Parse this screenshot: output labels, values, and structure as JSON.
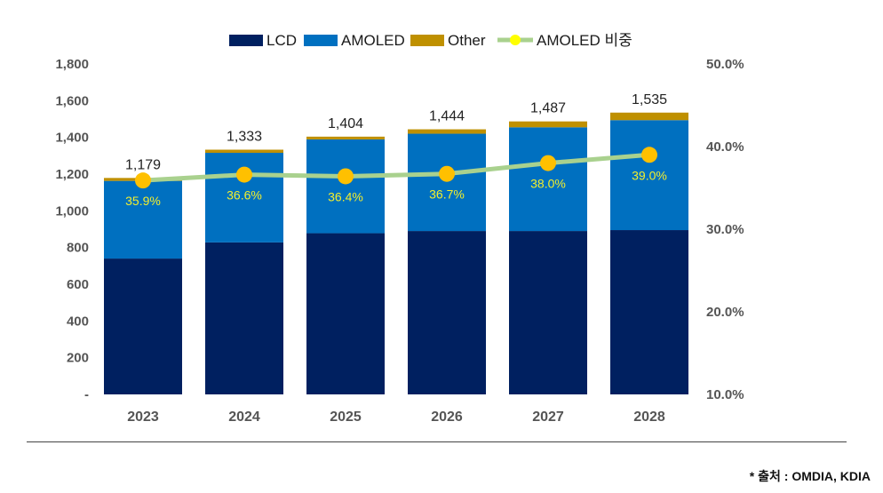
{
  "chart_data": {
    "type": "bar",
    "stacked": true,
    "categories": [
      "2023",
      "2024",
      "2025",
      "2026",
      "2027",
      "2028"
    ],
    "series": [
      {
        "name": "LCD",
        "color": "#002060",
        "values": [
          740,
          828,
          878,
          890,
          890,
          895
        ]
      },
      {
        "name": "AMOLED",
        "color": "#0070c0",
        "values": [
          423,
          488,
          511,
          530,
          565,
          599
        ]
      },
      {
        "name": "Other",
        "color": "#bf9000",
        "values": [
          16,
          17,
          15,
          24,
          32,
          41
        ]
      }
    ],
    "totals": [
      "1,179",
      "1,333",
      "1,404",
      "1,444",
      "1,487",
      "1,535"
    ],
    "total_values": [
      1179,
      1333,
      1404,
      1444,
      1487,
      1535
    ],
    "line_series": {
      "name": "AMOLED 비중",
      "axis": "right",
      "line_color": "#a9d18e",
      "marker_color": "#ffc000",
      "values": [
        35.9,
        36.6,
        36.4,
        36.7,
        38.0,
        39.0
      ],
      "labels": [
        "35.9%",
        "36.6%",
        "36.4%",
        "36.7%",
        "38.0%",
        "39.0%"
      ]
    },
    "left_axis": {
      "ylim": [
        0,
        1800
      ],
      "ticks": [
        0,
        200,
        400,
        600,
        800,
        1000,
        1200,
        1400,
        1600,
        1800
      ],
      "tick_labels": [
        "-",
        "200",
        "400",
        "600",
        "800",
        "1,000",
        "1,200",
        "1,400",
        "1,600",
        "1,800"
      ]
    },
    "right_axis": {
      "ylim": [
        10,
        50
      ],
      "ticks": [
        10,
        20,
        30,
        40,
        50
      ],
      "tick_labels": [
        "10.0%",
        "20.0%",
        "30.0%",
        "40.0%",
        "50.0%"
      ]
    },
    "legend": [
      "LCD",
      "AMOLED",
      "Other",
      "AMOLED 비중"
    ],
    "legend_position": "top",
    "grid": false
  },
  "source_note": "* 출처 : OMDIA, KDIA"
}
